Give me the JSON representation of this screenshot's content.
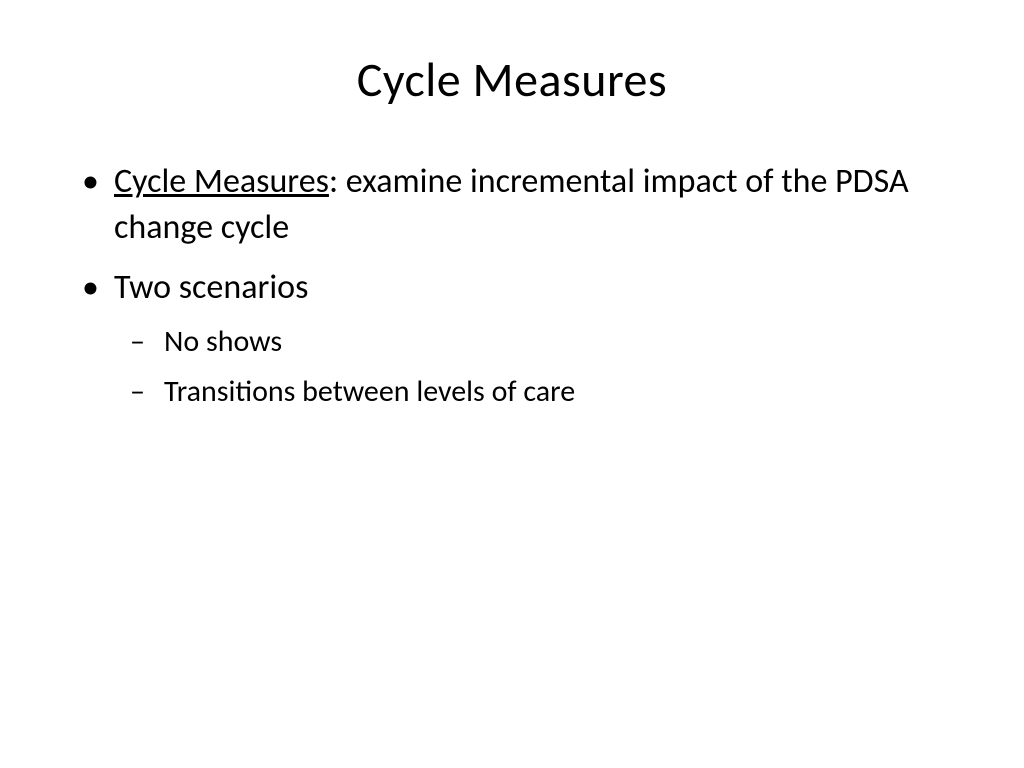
{
  "slide": {
    "title": "Cycle Measures",
    "bullets": [
      {
        "underlined_lead": "Cycle Measures",
        "rest": ": examine incremental impact of the PDSA change cycle"
      },
      {
        "text": "Two scenarios",
        "sub": [
          "No shows",
          "Transitions between levels of care"
        ]
      }
    ],
    "colors": {
      "background": "#ffffff",
      "text": "#000000"
    },
    "typography": {
      "title_fontsize": 48,
      "body_fontsize": 34,
      "sub_fontsize": 30,
      "font_family": "Calibri"
    }
  }
}
